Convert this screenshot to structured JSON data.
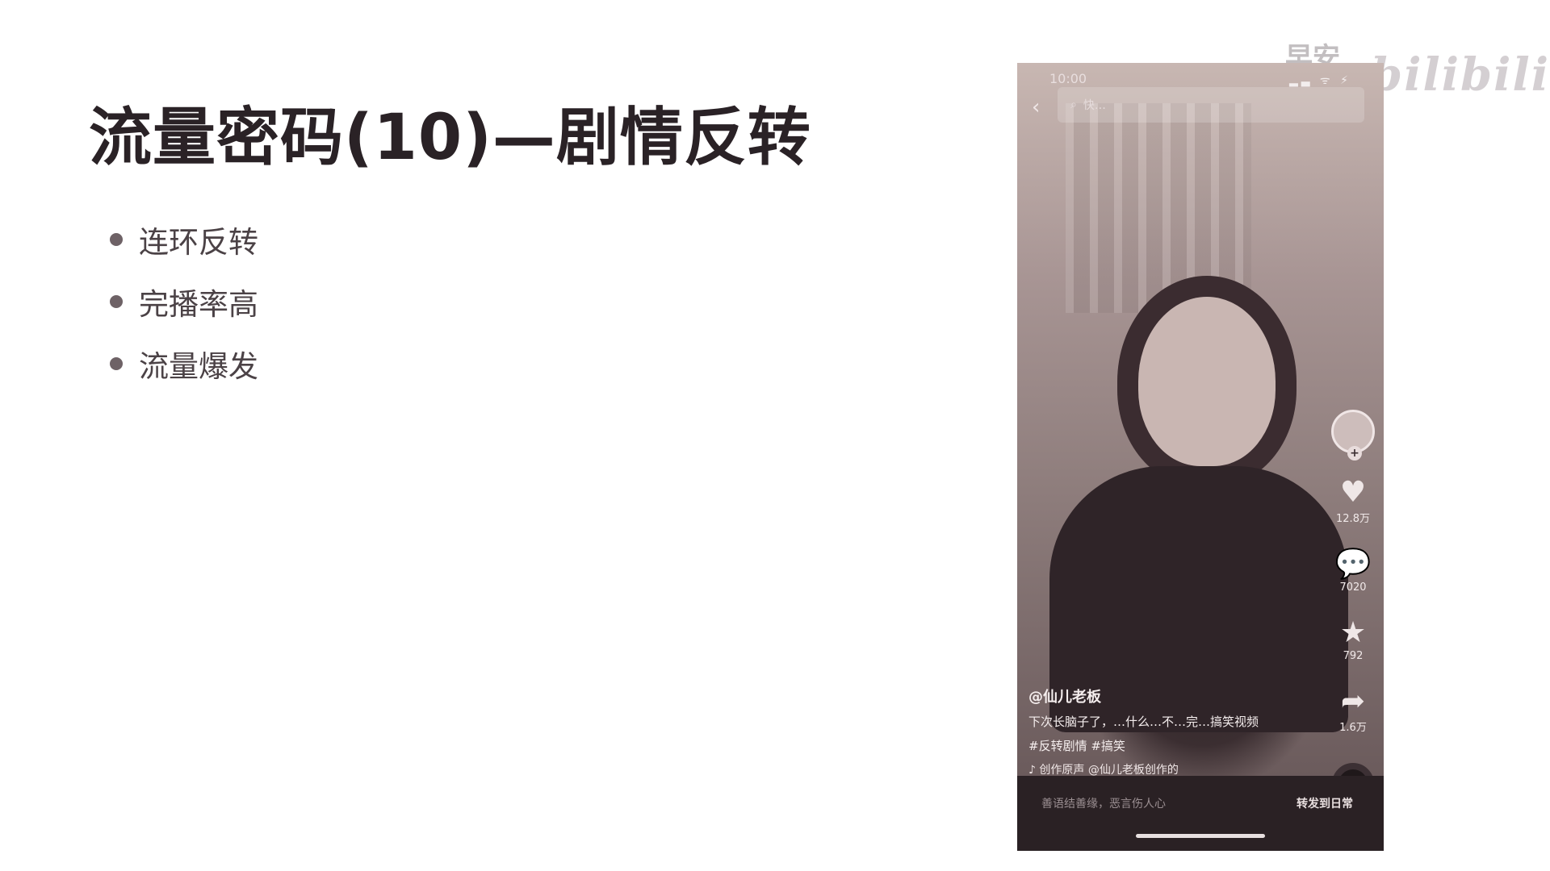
{
  "slide": {
    "title": "流量密码(10)—剧情反转",
    "bullets": [
      "连环反转",
      "完播率高",
      "流量爆发"
    ]
  },
  "watermark": {
    "text": "早安看客",
    "logo": "bilibili"
  },
  "phone": {
    "status_time": "10:00",
    "status_icons": "▂▃ ᯤ ⚡",
    "search_text": "快…",
    "right_rail": {
      "likes": "12.8万",
      "comments": "7020",
      "favorites": "792",
      "shares": "1.6万"
    },
    "caption": {
      "author": "@仙儿老板",
      "text": "下次长脑子了，…什么…不…完…搞笑视频",
      "tags": "#反转剧情 #搞笑",
      "music": "♪ 创作原声  @仙儿老板创作的"
    },
    "bottom": {
      "comment_placeholder": "善语结善缘，恶言伤人心",
      "share_label": "转发到日常"
    }
  }
}
